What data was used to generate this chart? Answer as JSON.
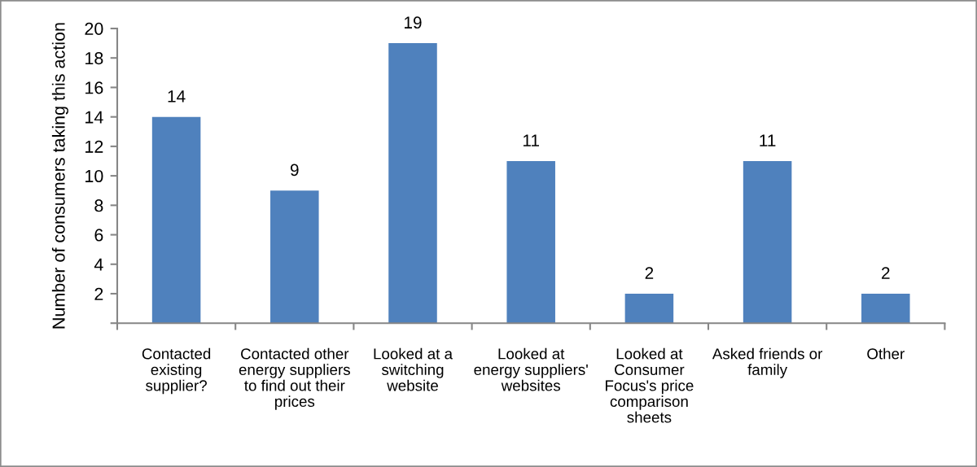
{
  "chart_data": {
    "type": "bar",
    "ylabel": "Number of consumers taking this action",
    "categories": [
      "Contacted\nexisting\nsupplier?",
      "Contacted other\nenergy suppliers\nto find out their\nprices",
      "Looked at a\nswitching\nwebsite",
      "Looked at\nenergy suppliers'\nwebsites",
      "Looked at\nConsumer\nFocus's price\ncomparison\nsheets",
      "Asked friends or\nfamily",
      "Other"
    ],
    "values": [
      14,
      9,
      19,
      11,
      2,
      11,
      2
    ],
    "color": "#4f81bd",
    "ylim": [
      0,
      20
    ],
    "yticks": [
      {
        "value": 0,
        "label": null
      },
      2,
      4,
      6,
      8,
      10,
      12,
      14,
      16,
      18,
      20
    ],
    "data_labels": true,
    "grid": false,
    "legend": false
  }
}
